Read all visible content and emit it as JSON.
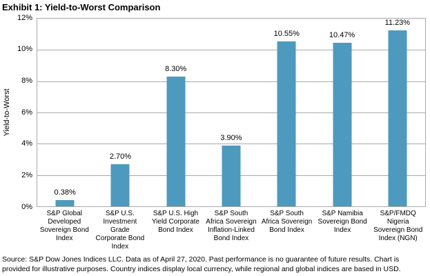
{
  "title": "Exhibit 1: Yield-to-Worst Comparison",
  "chart_data": {
    "type": "bar",
    "title": "Exhibit 1: Yield-to-Worst Comparison",
    "categories": [
      "S&P Global Developed Sovereign Bond Index",
      "S&P U.S. Investment Grade Corporate Bond Index",
      "S&P U.S. High Yield Corporate Bond Index",
      "S&P South Africa Sovereign Inflation-Linked Bond Index",
      "S&P South Africa Sovereign Bond Index",
      "S&P Namibia Sovereign Bond Index",
      "S&P/FMDQ Nigeria Sovereign Bond Index (NGN)"
    ],
    "x_labels_wrapped": [
      "S&P Global\nDeveloped\nSovereign Bond\nIndex",
      "S&P U.S.\nInvestment\nGrade\nCorporate Bond\nIndex",
      "S&P U.S. High\nYield Corporate\nBond Index",
      "S&P South\nAfrica Sovereign\nInflation-Linked\nBond Index",
      "S&P South\nAfrica Sovereign\nBond Index",
      "S&P Namibia\nSovereign Bond\nIndex",
      "S&P/FMDQ\nNigeria\nSovereign Bond\nIndex (NGN)"
    ],
    "values": [
      0.38,
      2.7,
      8.3,
      3.9,
      10.55,
      10.47,
      11.23
    ],
    "value_labels": [
      "0.38%",
      "2.70%",
      "8.30%",
      "3.90%",
      "10.55%",
      "10.47%",
      "11.23%"
    ],
    "xlabel": "",
    "ylabel": "Yield-to-Worst",
    "ylim": [
      0,
      12
    ],
    "y_ticks": [
      "0%",
      "2%",
      "4%",
      "6%",
      "8%",
      "10%",
      "12%"
    ],
    "grid": true,
    "legend": "none",
    "bar_color": "#4E9ABE",
    "grid_color": "#A9A9A9"
  },
  "footer": {
    "source": "Source: S&P Dow Jones Indices LLC. Data as of April 27, 2020. Past performance is no guarantee of future results. Chart is\nprovided for illustrative purposes. Country indices display local currency, while regional and global indices are based in USD."
  }
}
